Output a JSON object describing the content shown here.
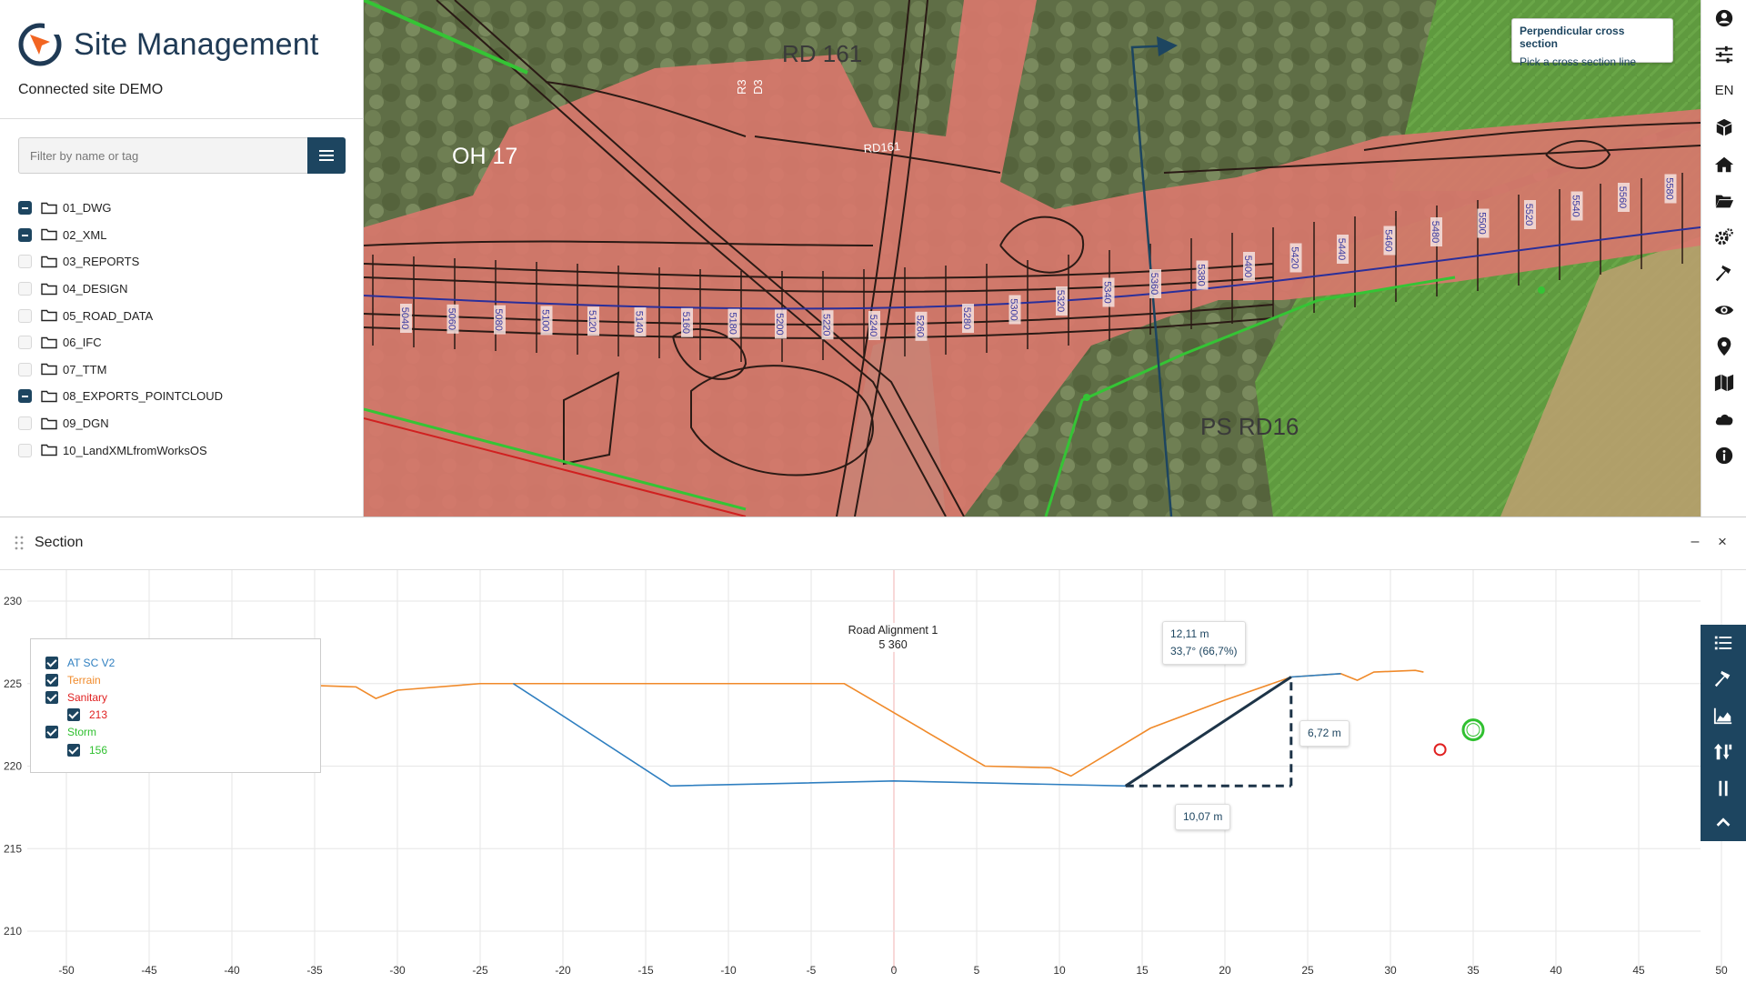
{
  "app": {
    "title": "Site Management",
    "site_name": "Connected site DEMO"
  },
  "filter": {
    "placeholder": "Filter by name or tag",
    "menu_icon": "hamburger-icon"
  },
  "folders": [
    {
      "label": "01_DWG",
      "checked": true
    },
    {
      "label": "02_XML",
      "checked": true
    },
    {
      "label": "03_REPORTS",
      "checked": false
    },
    {
      "label": "04_DESIGN",
      "checked": false
    },
    {
      "label": "05_ROAD_DATA",
      "checked": false
    },
    {
      "label": "06_IFC",
      "checked": false
    },
    {
      "label": "07_TTM",
      "checked": false
    },
    {
      "label": "08_EXPORTS_POINTCLOUD",
      "checked": true
    },
    {
      "label": "09_DGN",
      "checked": false
    },
    {
      "label": "10_LandXMLfromWorksOS",
      "checked": false
    }
  ],
  "map": {
    "labels": {
      "rd161": "RD 161",
      "rd161_small": "RD161",
      "oh17": "OH 17",
      "psrd16": "PS RD16",
      "r3": "R3",
      "d3": "D3"
    },
    "stations": [
      "5040",
      "5060",
      "5080",
      "5100",
      "5120",
      "5140",
      "5160",
      "5180",
      "5200",
      "5220",
      "5240",
      "5260",
      "5280",
      "5300",
      "5320",
      "5340",
      "5360",
      "5380",
      "5400",
      "5420",
      "5440",
      "5460",
      "5480",
      "5500",
      "5520",
      "5540",
      "5560",
      "5580"
    ],
    "tooltip": {
      "title": "Perpendicular cross section",
      "hint": "Pick a cross section line"
    }
  },
  "toolbar": {
    "language": "EN",
    "icons": [
      "user-icon",
      "sliders-icon",
      "cube-icon",
      "home-icon",
      "folder-open-icon",
      "cogs-icon",
      "hammer-icon",
      "eye-icon",
      "map-marker-icon",
      "map-icon",
      "cloud-icon",
      "info-icon"
    ]
  },
  "section": {
    "title": "Section",
    "minimize": "–",
    "close": "×",
    "road_alignment": "Road Alignment 1",
    "station": "5 360",
    "measurements": {
      "slope_length": "12,11 m",
      "slope_angle": "33,7° (66,7%)",
      "vertical": "6,72 m",
      "horizontal": "10,07 m"
    },
    "legend": [
      {
        "label": "AT SC V2",
        "color": "#2f7fc0",
        "sub": false
      },
      {
        "label": "Terrain",
        "color": "#f08a2a",
        "sub": false
      },
      {
        "label": "Sanitary",
        "color": "#e02020",
        "sub": false
      },
      {
        "label": "213",
        "color": "#e02020",
        "sub": true
      },
      {
        "label": "Storm",
        "color": "#30c030",
        "sub": false
      },
      {
        "label": "156",
        "color": "#30c030",
        "sub": true
      }
    ],
    "toolbar_icons": [
      "list-icon",
      "hammer-icon",
      "area-chart-icon",
      "sort-icon",
      "pause-icon",
      "chevron-up-icon"
    ]
  },
  "chart_data": {
    "type": "line",
    "title": "",
    "xlim": [
      -50,
      50
    ],
    "ylim": [
      208,
      231
    ],
    "x_ticks": [
      -50,
      -45,
      -40,
      -35,
      -30,
      -25,
      -20,
      -15,
      -10,
      -5,
      0,
      5,
      10,
      15,
      20,
      25,
      30,
      35,
      40,
      45,
      50
    ],
    "y_ticks": [
      210,
      215,
      220,
      225,
      230
    ],
    "grid": true,
    "series": [
      {
        "name": "Terrain",
        "color": "#f08a2a",
        "points": [
          [
            -35.5,
            224.9
          ],
          [
            -32.5,
            224.8
          ],
          [
            -31.3,
            224.1
          ],
          [
            -30.0,
            224.6
          ],
          [
            -25.0,
            225.0
          ],
          [
            -3.0,
            225.0
          ],
          [
            5.5,
            220.0
          ],
          [
            9.5,
            219.9
          ],
          [
            10.7,
            219.4
          ],
          [
            15.5,
            222.3
          ],
          [
            20.0,
            224.0
          ],
          [
            24.0,
            225.4
          ],
          [
            27.0,
            225.6
          ],
          [
            28.0,
            225.2
          ],
          [
            29.0,
            225.7
          ],
          [
            31.5,
            225.8
          ],
          [
            32.0,
            225.7
          ]
        ]
      },
      {
        "name": "AT SC V2",
        "color": "#2f7fc0",
        "points": [
          [
            -23.0,
            225.0
          ],
          [
            -13.5,
            218.8
          ],
          [
            0.0,
            219.1
          ],
          [
            14.0,
            218.8
          ],
          [
            24.0,
            225.4
          ],
          [
            27.0,
            225.6
          ]
        ]
      },
      {
        "name": "213",
        "color": "#e02020",
        "points": [
          [
            33.0,
            221.0
          ]
        ]
      },
      {
        "name": "156",
        "color": "#30c030",
        "points": [
          [
            35.0,
            222.2
          ]
        ]
      }
    ],
    "measurement": {
      "from": [
        14.0,
        218.8
      ],
      "to": [
        24.0,
        225.4
      ]
    }
  }
}
